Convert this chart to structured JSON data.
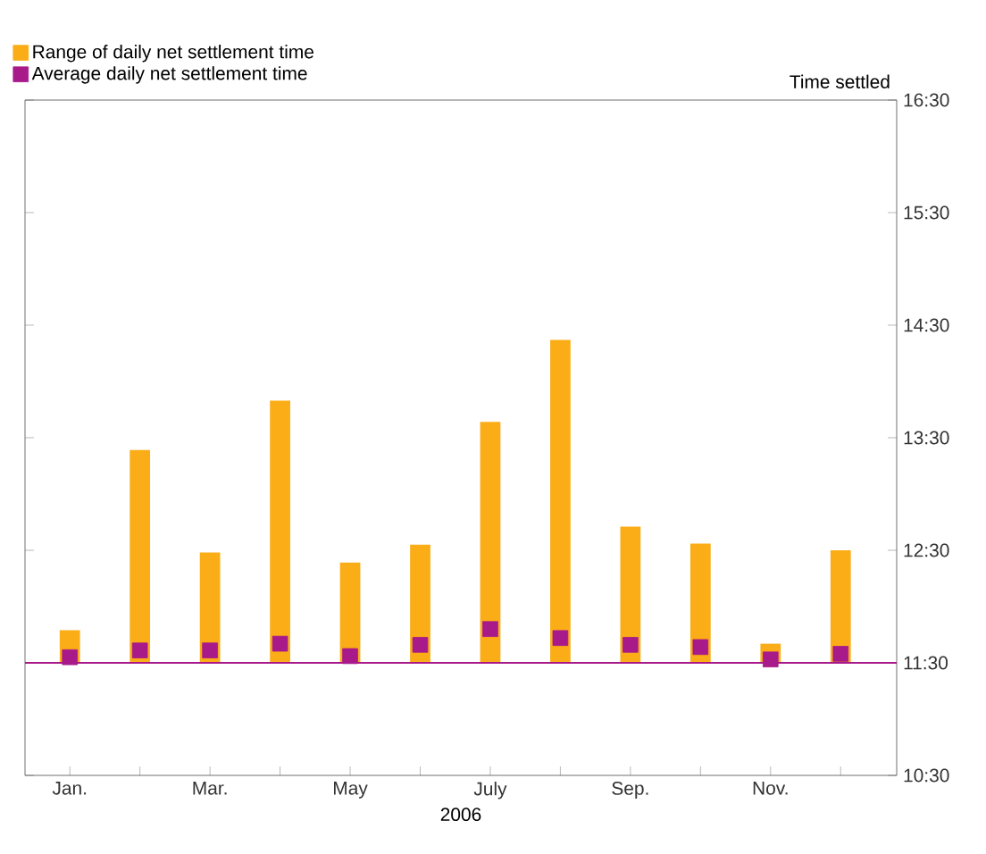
{
  "chart_data": {
    "type": "bar",
    "ylabel": "Time settled",
    "xlabel": "2006",
    "categories": [
      "Jan.",
      null,
      "Mar.",
      null,
      "May",
      null,
      "July",
      null,
      "Sep.",
      null,
      "Nov.",
      null
    ],
    "series": [
      {
        "name": "Range of daily net settlement time",
        "color": "#fbad18",
        "base": [
          11.5,
          11.5,
          11.5,
          11.5,
          11.5,
          11.5,
          11.5,
          11.5,
          11.5,
          11.5,
          11.5,
          11.5
        ],
        "values": [
          0.29,
          1.89,
          0.98,
          2.33,
          0.89,
          1.05,
          2.14,
          2.87,
          1.21,
          1.06,
          0.17,
          1.0
        ]
      },
      {
        "name": "Average daily net settlement time",
        "type": "scatter",
        "color": "#a8198a",
        "marker": "square",
        "values": [
          11.55,
          11.61,
          11.61,
          11.67,
          11.56,
          11.66,
          11.8,
          11.72,
          11.66,
          11.64,
          11.53,
          11.58
        ]
      }
    ],
    "ylim": [
      10.5,
      16.5
    ],
    "yticks": [
      {
        "value": 10.5,
        "label": "10:30"
      },
      {
        "value": 11.5,
        "label": "11:30"
      },
      {
        "value": 12.5,
        "label": "12:30"
      },
      {
        "value": 13.5,
        "label": "13:30"
      },
      {
        "value": 14.5,
        "label": "14:30"
      },
      {
        "value": 15.5,
        "label": "15:30"
      },
      {
        "value": 16.5,
        "label": "16:30"
      }
    ],
    "ref_lines": [
      {
        "axis": "y",
        "value": 11.5,
        "color": "#a8198a"
      }
    ],
    "legend": "top left"
  }
}
